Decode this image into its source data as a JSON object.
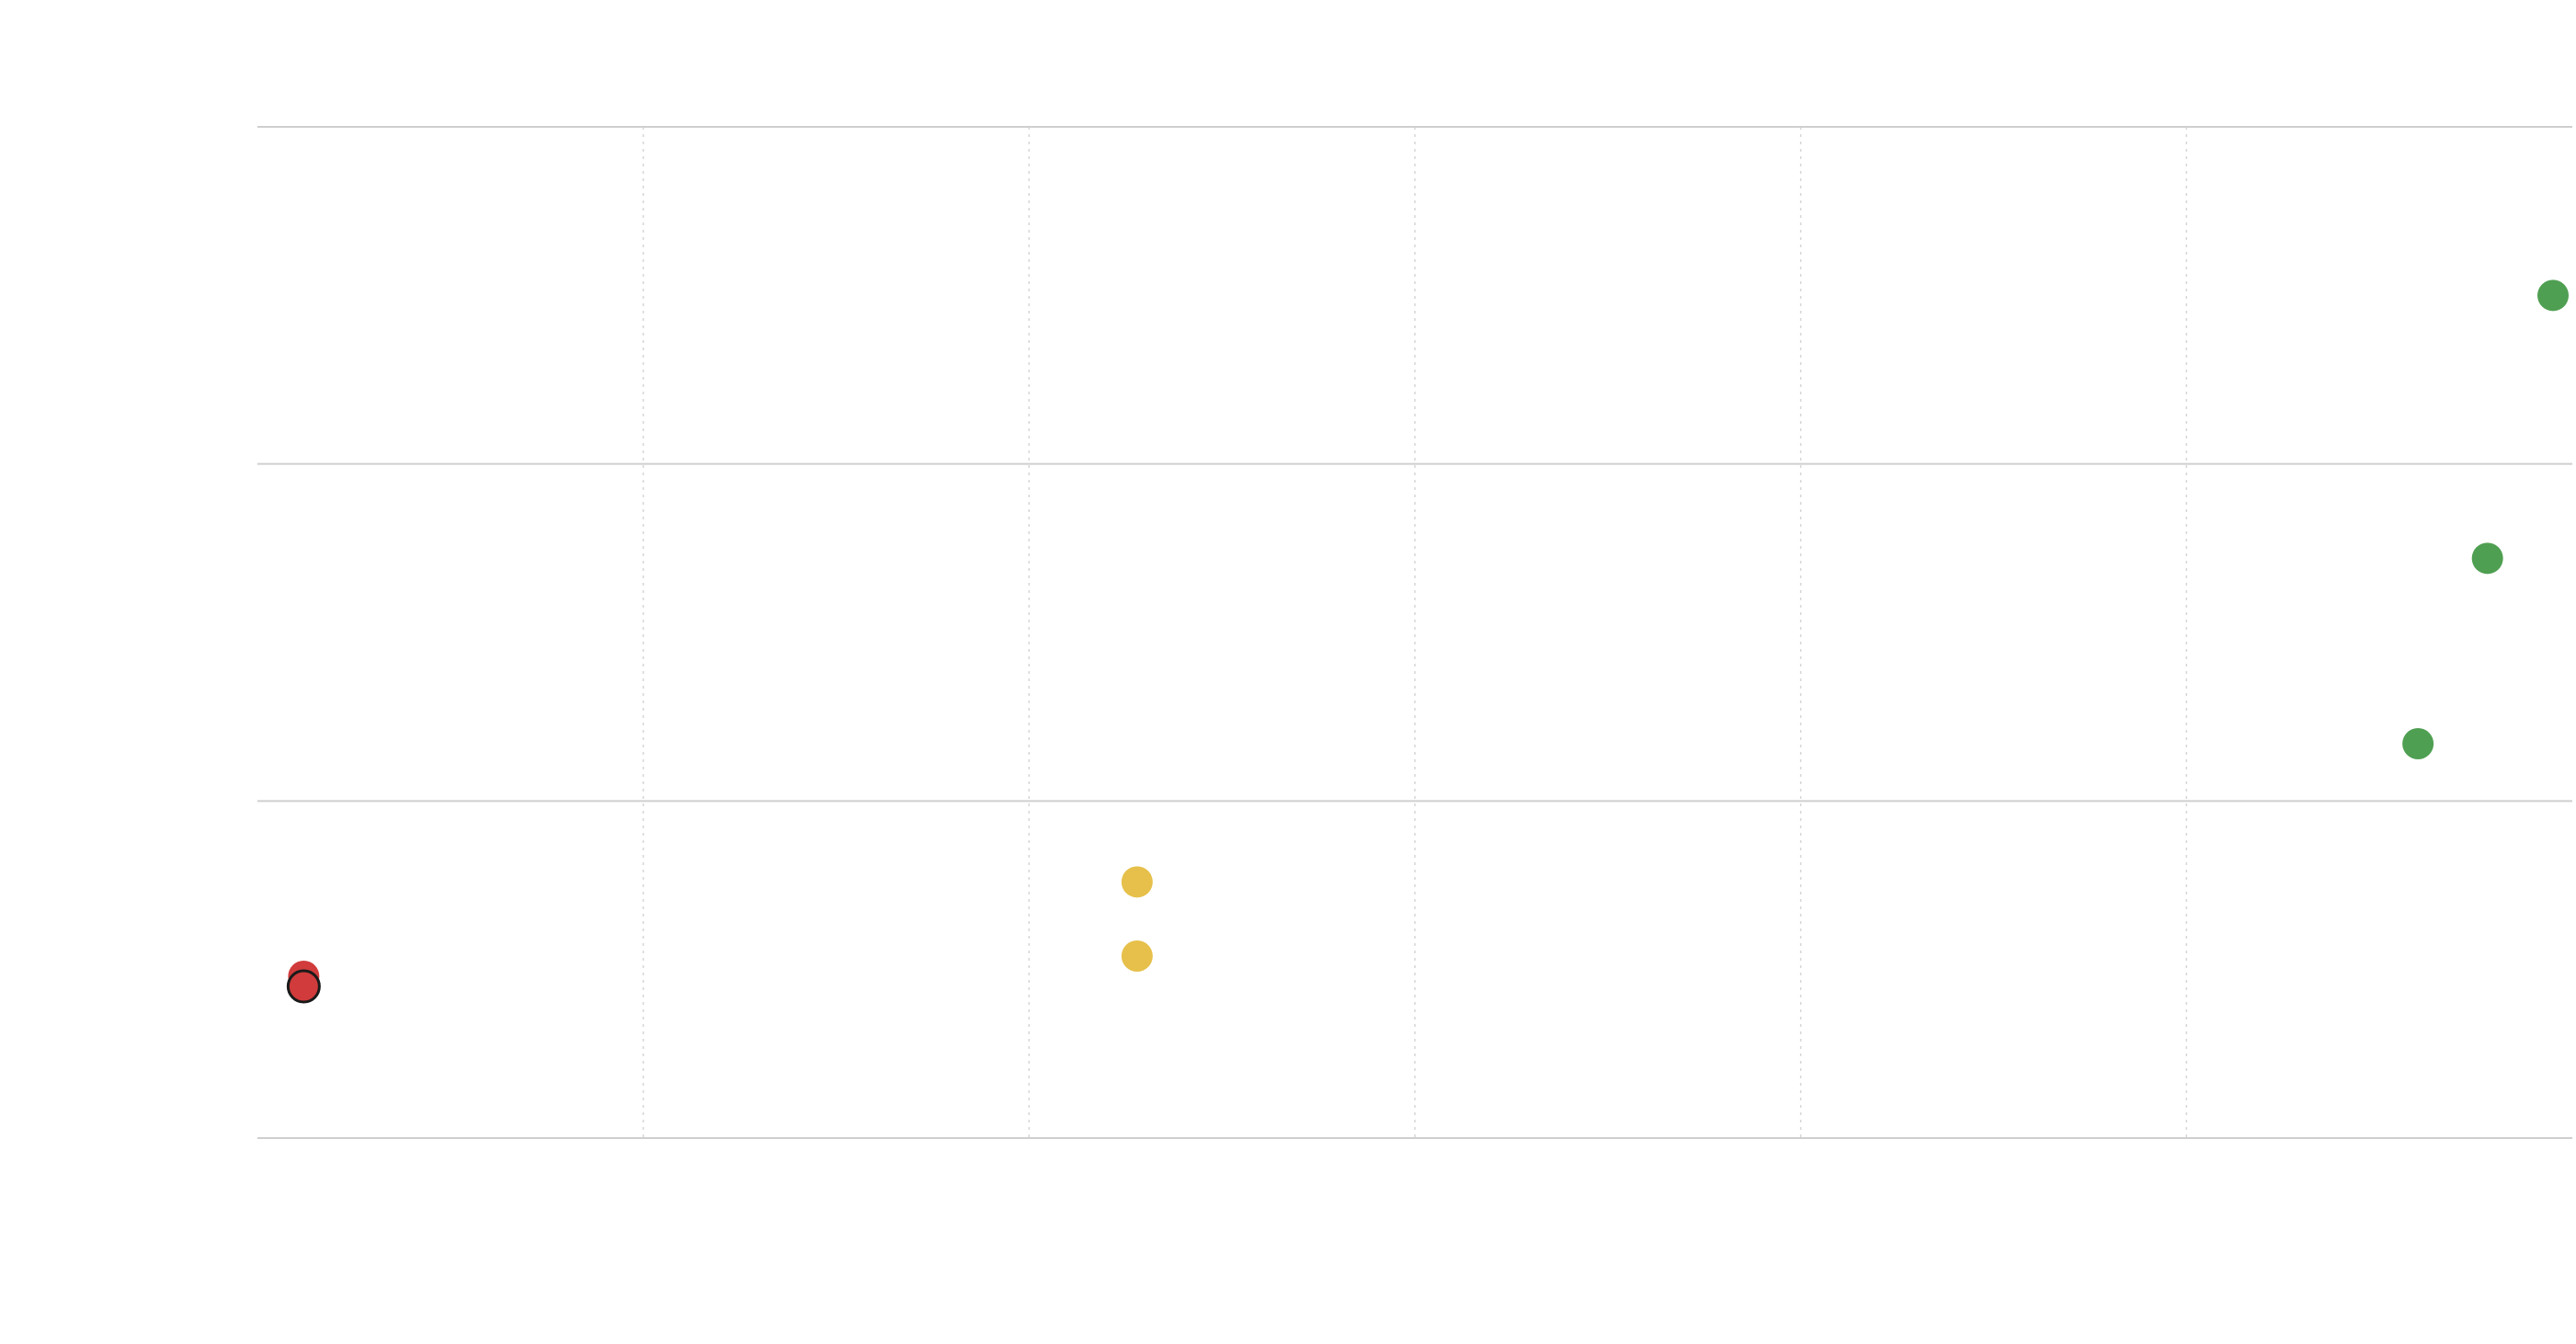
{
  "chart_data": {
    "type": "scatter",
    "title": "",
    "xlabel": "",
    "ylabel": "",
    "xlim": [
      0,
      6
    ],
    "ylim": [
      0,
      3
    ],
    "x_grid": "dotted",
    "y_grid": "solid",
    "legend": "none",
    "series": [
      {
        "color": "#d13b3b",
        "points": [
          {
            "x": 0.12,
            "y": 0.48,
            "outlined": false
          },
          {
            "x": 0.12,
            "y": 0.45,
            "outlined": true
          }
        ]
      },
      {
        "color": "#e6c04a",
        "points": [
          {
            "x": 2.28,
            "y": 0.76
          },
          {
            "x": 2.28,
            "y": 0.54
          }
        ]
      },
      {
        "color": "#4f9f52",
        "points": [
          {
            "x": 5.95,
            "y": 2.5
          },
          {
            "x": 5.78,
            "y": 1.72
          },
          {
            "x": 5.6,
            "y": 1.17
          }
        ]
      }
    ]
  }
}
